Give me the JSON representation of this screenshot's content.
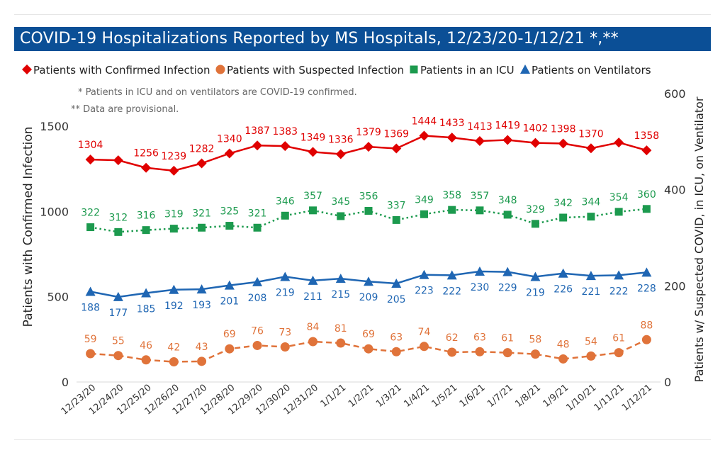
{
  "chart_data": {
    "type": "line",
    "title": "COVID-19 Hospitalizations Reported by MS Hospitals, 12/23/20-1/12/21 *,**",
    "notes": [
      "* Patients in ICU and on ventilators are COVID-19 confirmed.",
      "** Data are provisional."
    ],
    "ylabel_left": "Patients with Confirmed Infection",
    "ylabel_right": "Patients w/ Suspected COVID, in ICU, on Ventilator",
    "ylim_left": [
      0,
      1600
    ],
    "ylim_right": [
      0,
      600
    ],
    "yticks_left": [
      "0",
      "500",
      "1000",
      "1500"
    ],
    "yticks_right": [
      "0",
      "200",
      "400",
      "600"
    ],
    "legend_position": "top",
    "grid": false,
    "categories": [
      "12/23/20",
      "12/24/20",
      "12/25/20",
      "12/26/20",
      "12/27/20",
      "12/28/20",
      "12/29/20",
      "12/30/20",
      "12/31/20",
      "1/1/21",
      "1/2/21",
      "1/3/21",
      "1/4/21",
      "1/5/21",
      "1/6/21",
      "1/7/21",
      "1/8/21",
      "1/9/21",
      "1/10/21",
      "1/11/21",
      "1/12/21"
    ],
    "series": [
      {
        "name": "Patients with Confirmed Infection",
        "axis": "left",
        "color": "#e00000",
        "marker": "diamond",
        "dash": "solid",
        "label_pos": "above",
        "values": [
          1304,
          1300,
          1256,
          1239,
          1282,
          1340,
          1387,
          1383,
          1349,
          1336,
          1379,
          1369,
          1444,
          1433,
          1413,
          1419,
          1402,
          1398,
          1370,
          1404,
          1358
        ],
        "labels": [
          "1304",
          "",
          "1256",
          "1239",
          "1282",
          "1340",
          "1387",
          "1383",
          "1349",
          "1336",
          "1379",
          "1369",
          "1444",
          "1433",
          "1413",
          "1419",
          "1402",
          "1398",
          "1370",
          "",
          "1358"
        ]
      },
      {
        "name": "Patients with Suspected Infection",
        "axis": "right",
        "color": "#e0733a",
        "marker": "circle",
        "dash": "dashed",
        "label_pos": "above",
        "values": [
          59,
          55,
          46,
          42,
          43,
          69,
          76,
          73,
          84,
          81,
          69,
          63,
          74,
          62,
          63,
          61,
          58,
          48,
          54,
          61,
          88
        ],
        "labels": [
          "59",
          "55",
          "46",
          "42",
          "43",
          "69",
          "76",
          "73",
          "84",
          "81",
          "69",
          "63",
          "74",
          "62",
          "63",
          "61",
          "58",
          "48",
          "54",
          "61",
          "88"
        ]
      },
      {
        "name": "Patients in an ICU",
        "axis": "right",
        "color": "#1c9a4e",
        "marker": "square",
        "dash": "dotted",
        "label_pos": "above",
        "values": [
          322,
          312,
          316,
          319,
          321,
          325,
          321,
          346,
          357,
          345,
          356,
          337,
          349,
          358,
          357,
          348,
          329,
          342,
          344,
          354,
          360
        ],
        "labels": [
          "322",
          "312",
          "316",
          "319",
          "321",
          "325",
          "321",
          "346",
          "357",
          "345",
          "356",
          "337",
          "349",
          "358",
          "357",
          "348",
          "329",
          "342",
          "344",
          "354",
          "360"
        ]
      },
      {
        "name": "Patients on Ventilators",
        "axis": "right",
        "color": "#1f66b3",
        "marker": "triangle",
        "dash": "solid",
        "label_pos": "below",
        "values": [
          188,
          177,
          185,
          192,
          193,
          201,
          208,
          219,
          211,
          215,
          209,
          205,
          223,
          222,
          230,
          229,
          219,
          226,
          221,
          222,
          228
        ],
        "labels": [
          "188",
          "177",
          "185",
          "192",
          "193",
          "201",
          "208",
          "219",
          "211",
          "215",
          "209",
          "205",
          "223",
          "222",
          "230",
          "229",
          "219",
          "226",
          "221",
          "222",
          "228"
        ]
      }
    ]
  }
}
